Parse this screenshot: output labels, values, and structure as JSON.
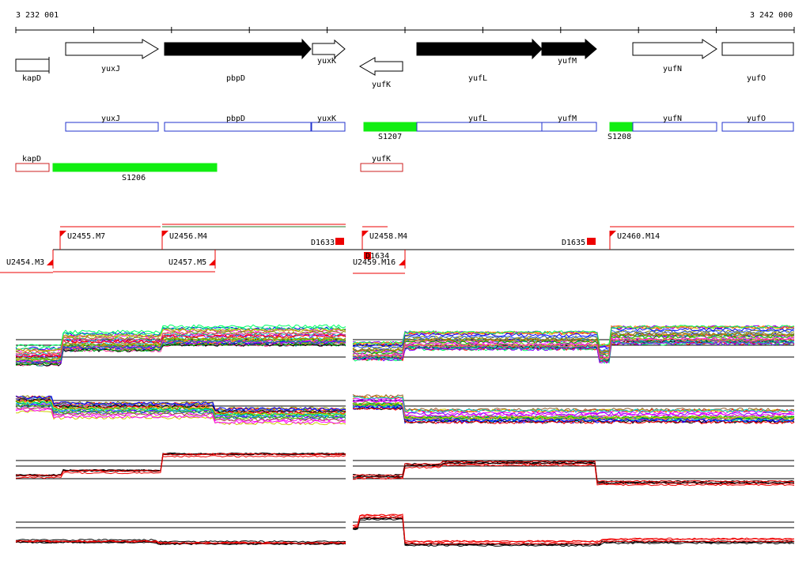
{
  "coordinates": {
    "start": "3 232 001",
    "end": "3 242 000"
  },
  "colors": {
    "gene_fill_black": "#000000",
    "gene_outline": "#000000",
    "annot_forward": "#2233cc",
    "annot_reverse": "#cc2222",
    "segment_green": "#11ee11",
    "marker_red": "#ee0000",
    "line_black": "#000000",
    "line_red": "#ee0000"
  },
  "genes": [
    {
      "id": "kapD",
      "label": "kapD",
      "strand": "-",
      "style": "open"
    },
    {
      "id": "yuxJ",
      "label": "yuxJ",
      "strand": "+",
      "style": "open"
    },
    {
      "id": "pbpD",
      "label": "pbpD",
      "strand": "+",
      "style": "filled"
    },
    {
      "id": "yuxK",
      "label": "yuxK",
      "strand": "+",
      "style": "open"
    },
    {
      "id": "yufK",
      "label": "yufK",
      "strand": "-",
      "style": "open"
    },
    {
      "id": "yufL",
      "label": "yufL",
      "strand": "+",
      "style": "filled"
    },
    {
      "id": "yufM",
      "label": "yufM",
      "strand": "+",
      "style": "filled"
    },
    {
      "id": "yufN",
      "label": "yufN",
      "strand": "+",
      "style": "open"
    },
    {
      "id": "yufO",
      "label": "yufO",
      "strand": "+",
      "style": "open"
    }
  ],
  "forward_annotations": [
    "yuxJ",
    "pbpD",
    "yuxK",
    "yufL",
    "yufM",
    "yufN",
    "yufO"
  ],
  "reverse_annotations": [
    "kapD",
    "yufK"
  ],
  "segments": [
    "S1206",
    "S1207",
    "S1208"
  ],
  "transcription_units": {
    "forward": [
      "U2455.M7",
      "U2456.M4",
      "U2458.M4",
      "U2460.M14"
    ],
    "reverse": [
      "U2454.M3",
      "U2457.M5",
      "U2459.M16"
    ],
    "boxes": [
      "D1633",
      "D1634",
      "D1635"
    ]
  },
  "profile_panels": [
    {
      "id": "panel-1",
      "palette": "multicolor"
    },
    {
      "id": "panel-2",
      "palette": "multicolor"
    },
    {
      "id": "panel-3",
      "palette": "black-red"
    },
    {
      "id": "panel-4",
      "palette": "black-red"
    }
  ]
}
